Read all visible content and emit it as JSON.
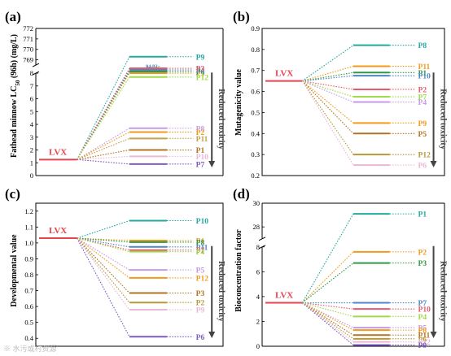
{
  "watermark": "※ 水污或村资源",
  "arrow_text": "Reduced toxicity",
  "colors": {
    "LVX": "#e8444f",
    "P1": "#22a9a0",
    "P2": "#f39a1b",
    "P3": "#2e9a46",
    "P4": "#4f86c6",
    "P5": "#e8596b",
    "P6": "#a2d94a",
    "P7": "#c59be8",
    "P8": "#c7a14a",
    "P9": "#b17424",
    "P10": "#eab8d6",
    "P11": "#b59a3a",
    "P12": "#7e5bc2"
  },
  "chart_data": [
    {
      "panel": "(a)",
      "type": "line",
      "ylabel": "Fathead minnow LC50 (96h) (mg/L)",
      "broken_axis": true,
      "lower_range": [
        0,
        8
      ],
      "upper_range": [
        768.5,
        772
      ],
      "lower_ticks": [
        0,
        1,
        2,
        3,
        4,
        5,
        6,
        7,
        8
      ],
      "upper_ticks": [
        769,
        770,
        771,
        772
      ],
      "parent": {
        "name": "LVX",
        "value": 1.25
      },
      "value_labels": {
        "P5": "274.15",
        "P6": "142.25",
        "P4": "94.82"
      },
      "points": [
        {
          "name": "P9",
          "value": 769.3,
          "color": "#22a9a0",
          "order": 0
        },
        {
          "name": "P5",
          "value": 274.15,
          "color": "#f39a1b",
          "order": 1
        },
        {
          "name": "P6",
          "value": 142.25,
          "color": "#2e9a46",
          "order": 2
        },
        {
          "name": "P4",
          "value": 94.82,
          "color": "#4f86c6",
          "order": 3
        },
        {
          "name": "P3",
          "value": 8.1,
          "color": "#e8596b",
          "order": 4
        },
        {
          "name": "P12",
          "value": 7.7,
          "color": "#a2d94a",
          "order": 5
        },
        {
          "name": "P8",
          "value": 3.7,
          "color": "#c59be8",
          "order": 6
        },
        {
          "name": "P2",
          "value": 3.4,
          "color": "#f39a1b",
          "order": 7
        },
        {
          "name": "P11",
          "value": 2.9,
          "color": "#c7a14a",
          "order": 8
        },
        {
          "name": "P1",
          "value": 2.0,
          "color": "#b17424",
          "order": 9
        },
        {
          "name": "P10",
          "value": 1.5,
          "color": "#eab8d6",
          "order": 10
        },
        {
          "name": "P7",
          "value": 0.9,
          "color": "#7e5bc2",
          "order": 11
        }
      ]
    },
    {
      "panel": "(b)",
      "type": "line",
      "ylabel": "Mutagenicity value",
      "ylim": [
        0.2,
        0.9
      ],
      "ticks": [
        0.2,
        0.3,
        0.4,
        0.5,
        0.6,
        0.7,
        0.8,
        0.9
      ],
      "parent": {
        "name": "LVX",
        "value": 0.65
      },
      "points": [
        {
          "name": "P8",
          "value": 0.82,
          "color": "#22a9a0"
        },
        {
          "name": "P11",
          "value": 0.72,
          "color": "#f39a1b"
        },
        {
          "name": "P1",
          "value": 0.69,
          "color": "#2e9a46"
        },
        {
          "name": "P10",
          "value": 0.675,
          "color": "#4f86c6"
        },
        {
          "name": "P2",
          "value": 0.61,
          "color": "#e8596b"
        },
        {
          "name": "P7",
          "value": 0.575,
          "color": "#a2d94a"
        },
        {
          "name": "P4",
          "value": 0.55,
          "color": "#c59be8"
        },
        {
          "name": "P9",
          "value": 0.45,
          "color": "#f39a1b"
        },
        {
          "name": "P5",
          "value": 0.4,
          "color": "#b17424"
        },
        {
          "name": "P12",
          "value": 0.3,
          "color": "#b59a3a"
        },
        {
          "name": "P6",
          "value": 0.25,
          "color": "#eab8d6"
        }
      ]
    },
    {
      "panel": "(c)",
      "type": "line",
      "ylabel": "Developmental value",
      "ylim": [
        0.35,
        1.25
      ],
      "ticks": [
        0.4,
        0.5,
        0.6,
        0.7,
        0.8,
        0.9,
        1.0,
        1.1,
        1.2
      ],
      "parent": {
        "name": "LVX",
        "value": 1.03
      },
      "points": [
        {
          "name": "P10",
          "value": 1.14,
          "color": "#22a9a0"
        },
        {
          "name": "P1",
          "value": 1.015,
          "color": "#f39a1b"
        },
        {
          "name": "P8",
          "value": 1.005,
          "color": "#2e9a46"
        },
        {
          "name": "P11",
          "value": 0.975,
          "color": "#4f86c6"
        },
        {
          "name": "P7",
          "value": 0.955,
          "color": "#e8596b"
        },
        {
          "name": "P4",
          "value": 0.945,
          "color": "#a2d94a"
        },
        {
          "name": "P5",
          "value": 0.83,
          "color": "#c59be8"
        },
        {
          "name": "P12",
          "value": 0.78,
          "color": "#f39a1b"
        },
        {
          "name": "P3",
          "value": 0.685,
          "color": "#b17424"
        },
        {
          "name": "P2",
          "value": 0.625,
          "color": "#b59a3a"
        },
        {
          "name": "P9",
          "value": 0.58,
          "color": "#eab8d6"
        },
        {
          "name": "P6",
          "value": 0.41,
          "color": "#7e5bc2"
        }
      ]
    },
    {
      "panel": "(d)",
      "type": "line",
      "ylabel": "Bioconcentration factor",
      "broken_axis": true,
      "lower_range": [
        0,
        8
      ],
      "upper_range": [
        27,
        30
      ],
      "lower_ticks": [
        0,
        2,
        4,
        6,
        8
      ],
      "upper_ticks": [
        28,
        30
      ],
      "parent": {
        "name": "LVX",
        "value": 3.5
      },
      "points": [
        {
          "name": "P1",
          "value": 29.1,
          "color": "#22a9a0"
        },
        {
          "name": "P2",
          "value": 7.6,
          "color": "#f39a1b"
        },
        {
          "name": "P3",
          "value": 6.7,
          "color": "#2e9a46"
        },
        {
          "name": "P7",
          "value": 3.5,
          "color": "#4f86c6"
        },
        {
          "name": "P10",
          "value": 3.0,
          "color": "#e8596b"
        },
        {
          "name": "P4",
          "value": 2.4,
          "color": "#a2d94a"
        },
        {
          "name": "P5",
          "value": 1.5,
          "color": "#c59be8"
        },
        {
          "name": "P8",
          "value": 1.3,
          "color": "#f39a1b"
        },
        {
          "name": "P11",
          "value": 0.9,
          "color": "#b17424"
        },
        {
          "name": "P6",
          "value": 0.6,
          "color": "#b59a3a"
        },
        {
          "name": "P12",
          "value": 0.35,
          "color": "#eab8d6"
        },
        {
          "name": "P9",
          "value": 0.1,
          "color": "#7e5bc2"
        }
      ]
    }
  ]
}
